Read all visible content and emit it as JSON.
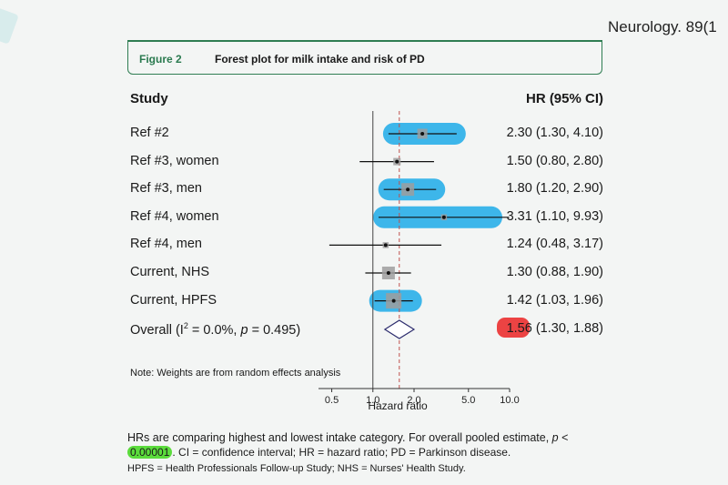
{
  "citation": "Neurology. 89(1",
  "figure": {
    "label": "Figure 2",
    "title": "Forest plot for milk intake and risk of PD"
  },
  "columns": {
    "study": "Study",
    "hr": "HR (95% CI)"
  },
  "rows": [
    {
      "study": "Ref #2",
      "hr_text": "2.30 (1.30, 4.10)"
    },
    {
      "study": "Ref #3, women",
      "hr_text": "1.50 (0.80, 2.80)"
    },
    {
      "study": "Ref #3, men",
      "hr_text": "1.80 (1.20, 2.90)"
    },
    {
      "study": "Ref #4, women",
      "hr_text": "3.31 (1.10, 9.93)"
    },
    {
      "study": "Ref #4, men",
      "hr_text": "1.24 (0.48, 3.17)"
    },
    {
      "study": "Current, NHS",
      "hr_text": "1.30 (0.88, 1.90)"
    },
    {
      "study": "Current, HPFS",
      "hr_text": "1.42 (1.03, 1.96)"
    }
  ],
  "overall": {
    "prefix": "Overall (I",
    "sup": "2",
    "mid": " = 0.0%, ",
    "p_italic": "p",
    "suffix": " = 0.495)",
    "hr_highlight": "1.56",
    "hr_rest": " (1.30, 1.88)"
  },
  "note": "Note: Weights are from random effects analysis",
  "footnotes": {
    "line1": "HRs are comparing highest and lowest intake category. For overall pooled estimate, ",
    "line1_p": "p",
    "line1_end": " <",
    "line2_highlight": "0.00001",
    "line2_rest": ". CI = confidence interval; HR = hazard ratio; PD = Parkinson disease.",
    "line3": "HPFS = Health Professionals Follow-up Study; NHS = Nurses' Health Study."
  },
  "colors": {
    "highlight_blue": "#3db6ea",
    "highlight_green": "#5bdc3c",
    "highlight_red": "#ec4343",
    "reference_line": "#c0504d",
    "diamond": "#2d2d6e",
    "header_border": "#2f7d52"
  },
  "chart_data": {
    "type": "forest",
    "xlabel": "Hazard ratio",
    "x_scale": "log",
    "xlim": [
      0.4,
      10.0
    ],
    "ticks": [
      0.5,
      1.0,
      2.0,
      5.0,
      10.0
    ],
    "tick_labels": [
      "0.5",
      "1.0",
      "2.0",
      "5.0",
      "10.0"
    ],
    "null_line": 1.0,
    "pooled_line": 1.56,
    "series": [
      {
        "study": "Ref #2",
        "hr": 2.3,
        "lo": 1.3,
        "hi": 4.1,
        "weight": 2,
        "highlighted": true
      },
      {
        "study": "Ref #3, women",
        "hr": 1.5,
        "lo": 0.8,
        "hi": 2.8,
        "weight": 1,
        "highlighted": false
      },
      {
        "study": "Ref #3, men",
        "hr": 1.8,
        "lo": 1.2,
        "hi": 2.9,
        "weight": 3,
        "highlighted": true
      },
      {
        "study": "Ref #4, women",
        "hr": 3.31,
        "lo": 1.1,
        "hi": 9.93,
        "weight": 0.5,
        "highlighted": true
      },
      {
        "study": "Ref #4, men",
        "hr": 1.24,
        "lo": 0.48,
        "hi": 3.17,
        "weight": 0.5,
        "highlighted": false
      },
      {
        "study": "Current, NHS",
        "hr": 1.3,
        "lo": 0.88,
        "hi": 1.9,
        "weight": 3,
        "highlighted": false
      },
      {
        "study": "Current, HPFS",
        "hr": 1.42,
        "lo": 1.03,
        "hi": 1.96,
        "weight": 4,
        "highlighted": true
      }
    ],
    "overall": {
      "hr": 1.56,
      "lo": 1.3,
      "hi": 1.88
    }
  }
}
